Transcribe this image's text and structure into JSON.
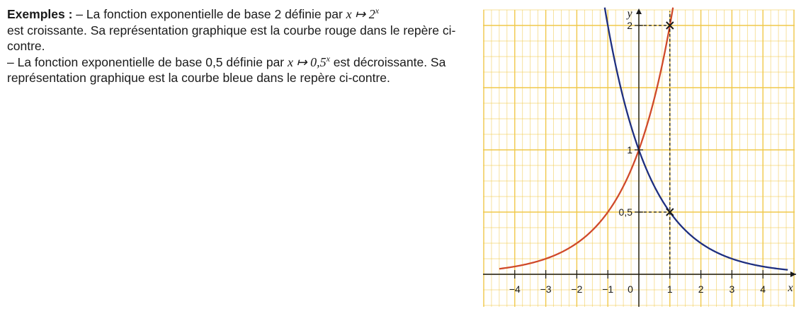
{
  "text": {
    "lead": "Exemples :",
    "ex1_a": " – La fonction exponentielle de base 2 définie par ",
    "ex1_map": "x ↦ 2",
    "ex1_exp": "x",
    "ex1_b": "est croissante. Sa représentation graphique est la courbe rouge dans le repère ci-contre.",
    "ex2_a": "– La fonction exponentielle de base 0,5 définie par ",
    "ex2_map": "x ↦ 0,5",
    "ex2_exp": "x",
    "ex2_b": " est décroissante. Sa représentation graphique est la courbe bleue dans le repère ci-contre."
  },
  "chart_data": {
    "type": "line",
    "title": "",
    "xlabel": "x",
    "ylabel": "y",
    "xlim": [
      -5,
      5
    ],
    "ylim": [
      -0.5,
      2.2
    ],
    "grid": true,
    "x_ticks": [
      -4,
      -3,
      -2,
      -1,
      0,
      1,
      2,
      3,
      4
    ],
    "x_tick_labels": [
      "−4",
      "−3",
      "−2",
      "−1",
      "0",
      "1",
      "2",
      "3",
      "4"
    ],
    "y_ticks": [
      0.5,
      1,
      2
    ],
    "y_tick_labels": [
      "0,5",
      "1",
      "2"
    ],
    "series": [
      {
        "function": "2^x",
        "color": "#d04a2a",
        "x": [
          -4.5,
          -4,
          -3,
          -2,
          -1,
          0,
          0.5,
          1,
          1.1
        ],
        "y": [
          0.044,
          0.0625,
          0.125,
          0.25,
          0.5,
          1,
          1.414,
          2,
          2.14
        ]
      },
      {
        "function": "0.5^x",
        "color": "#1e2f80",
        "x": [
          -1.1,
          -1,
          -0.5,
          0,
          1,
          2,
          3,
          4,
          4.8
        ],
        "y": [
          2.14,
          2,
          1.414,
          1,
          0.5,
          0.25,
          0.125,
          0.0625,
          0.036
        ]
      }
    ],
    "marked_points": [
      {
        "x": 1,
        "y": 2
      },
      {
        "x": 1,
        "y": 0.5
      }
    ],
    "colors": {
      "grid": "#f0c84a",
      "axis": "#1a1a1a"
    }
  }
}
